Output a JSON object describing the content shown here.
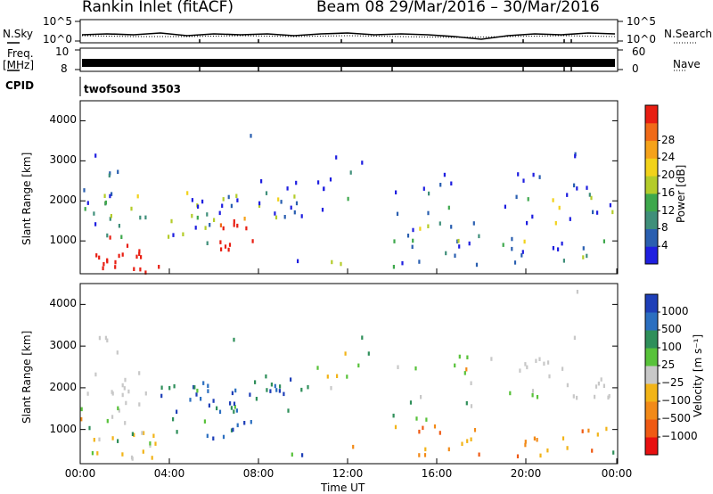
{
  "header": {
    "station_title": "Rankin Inlet (fitACF)",
    "beam_title": "Beam 08  29/Mar/2016 – 30/Mar/2016"
  },
  "status_panels": {
    "nsky_label": "N.Sky",
    "nsky_ticks": [
      "10^5",
      "10^0"
    ],
    "nsearch_label": "N.Search",
    "nsearch_ticks": [
      "10^5",
      "10^0"
    ],
    "freq_label_1": "Freq.",
    "freq_label_2": "[MHz]",
    "freq_ticks": [
      "10",
      "8"
    ],
    "nave_label": "Nave",
    "nave_ticks": [
      "60",
      "0"
    ],
    "cpid_label": "CPID",
    "cpid_value": "twofsound 3503"
  },
  "chart_data": [
    {
      "type": "heatmap",
      "quantity": "power",
      "ylabel": "Slant Range [km]",
      "ylim": [
        180,
        4500
      ],
      "y_ticks": [
        1000,
        2000,
        3000,
        4000
      ],
      "x_ticks": [
        "00:00",
        "04:00",
        "08:00",
        "12:00",
        "16:00",
        "20:00",
        "00:00"
      ],
      "colorbar_label": "Power [dB]",
      "colorbar_ticks": [
        4,
        8,
        12,
        16,
        20,
        24,
        28
      ],
      "colorbar_colors": [
        "#1f1fe0",
        "#2a5fb0",
        "#3f8f7a",
        "#3ea84c",
        "#b4cc2a",
        "#f2d21a",
        "#f5a21a",
        "#f06a18",
        "#e81e12"
      ]
    },
    {
      "type": "heatmap",
      "quantity": "velocity",
      "ylabel": "Slant Range [km]",
      "ylim": [
        180,
        4500
      ],
      "y_ticks": [
        1000,
        2000,
        3000,
        4000
      ],
      "x_ticks": [
        "00:00",
        "04:00",
        "08:00",
        "12:00",
        "16:00",
        "20:00",
        "00:00"
      ],
      "xlabel": "Time UT",
      "colorbar_label": "Velocity [m s⁻¹]",
      "colorbar_ticks": [
        "1000",
        "500",
        "100",
        "25",
        "−25",
        "−100",
        "−500",
        "−1000"
      ],
      "colorbar_colors": [
        "#1e3fb8",
        "#2b6fc0",
        "#2f8f5a",
        "#58c23a",
        "#c8c8c8",
        "#f2b418",
        "#f28a18",
        "#ef5a14",
        "#e81010"
      ]
    }
  ]
}
